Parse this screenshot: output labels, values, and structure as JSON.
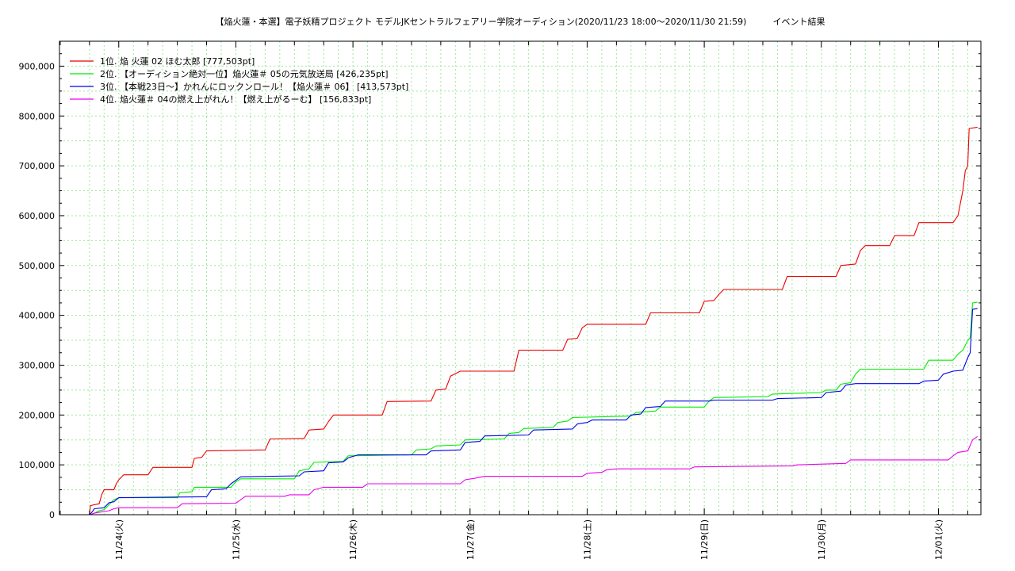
{
  "chart_data": {
    "type": "line",
    "title": "【焔火蓮・本選】電子妖精プロジェクト モデルJKセントラルフェアリー学院オーディション(2020/11/23 18:00〜2020/11/30 21:59)　　　イベント結果",
    "xlabel": "",
    "ylabel": "",
    "ylim": [
      0,
      950000
    ],
    "grid": true,
    "legend_position": "top-left",
    "x_tick_labels": [
      "11/24(火)",
      "11/25(水)",
      "11/26(木)",
      "11/27(金)",
      "11/28(土)",
      "11/29(日)",
      "11/30(月)",
      "12/01(火)"
    ],
    "y_tick_labels": [
      "0",
      "100,000",
      "200,000",
      "300,000",
      "400,000",
      "500,000",
      "600,000",
      "700,000",
      "800,000",
      "900,000"
    ],
    "x_unit": "hours since 2020/11/23 18:00",
    "series": [
      {
        "name": "1位. 焔 火蓮 02 ほむ太郎 [777,503pt]",
        "color": "#ee0000",
        "points": [
          [
            0,
            0
          ],
          [
            0.2,
            18000
          ],
          [
            1,
            20000
          ],
          [
            2,
            22000
          ],
          [
            2.5,
            40000
          ],
          [
            3,
            50000
          ],
          [
            5,
            50000
          ],
          [
            5.5,
            62000
          ],
          [
            6,
            70000
          ],
          [
            7,
            80000
          ],
          [
            12,
            80000
          ],
          [
            13,
            95000
          ],
          [
            21,
            95000
          ],
          [
            21.5,
            113000
          ],
          [
            23,
            115000
          ],
          [
            24,
            128000
          ],
          [
            36,
            130000
          ],
          [
            37,
            152000
          ],
          [
            44,
            153000
          ],
          [
            45,
            170000
          ],
          [
            48,
            172000
          ],
          [
            49,
            187000
          ],
          [
            50,
            200000
          ],
          [
            60,
            200000
          ],
          [
            61,
            227000
          ],
          [
            70,
            228000
          ],
          [
            71,
            250000
          ],
          [
            73,
            252000
          ],
          [
            74,
            278000
          ],
          [
            76,
            288000
          ],
          [
            87,
            288000
          ],
          [
            88,
            330000
          ],
          [
            97,
            330000
          ],
          [
            98,
            352000
          ],
          [
            100,
            354000
          ],
          [
            101,
            375000
          ],
          [
            102,
            382000
          ],
          [
            114,
            382000
          ],
          [
            115,
            405000
          ],
          [
            125,
            405000
          ],
          [
            126,
            428000
          ],
          [
            128,
            430000
          ],
          [
            129,
            442000
          ],
          [
            130,
            452000
          ],
          [
            142,
            452000
          ],
          [
            143,
            478000
          ],
          [
            153,
            478000
          ],
          [
            154,
            500000
          ],
          [
            157,
            503000
          ],
          [
            158,
            530000
          ],
          [
            159,
            540000
          ],
          [
            164,
            540000
          ],
          [
            165,
            560000
          ],
          [
            169,
            560000
          ],
          [
            170,
            586000
          ],
          [
            177,
            586000
          ],
          [
            178,
            600000
          ],
          [
            179,
            650000
          ],
          [
            179.5,
            690000
          ],
          [
            180,
            700000
          ],
          [
            180.3,
            775000
          ],
          [
            182,
            777503
          ]
        ]
      },
      {
        "name": "2位. 【オーディション絶対一位】焔火蓮＃ 05の元気放送局 [426,235pt]",
        "color": "#00ee00",
        "points": [
          [
            0,
            0
          ],
          [
            1,
            3000
          ],
          [
            2,
            8000
          ],
          [
            3,
            10000
          ],
          [
            4,
            20000
          ],
          [
            5,
            30000
          ],
          [
            6,
            34000
          ],
          [
            18,
            34000
          ],
          [
            18.5,
            44000
          ],
          [
            21,
            46000
          ],
          [
            21.5,
            55000
          ],
          [
            29,
            55000
          ],
          [
            30,
            66000
          ],
          [
            31,
            72000
          ],
          [
            42,
            72000
          ],
          [
            43,
            88000
          ],
          [
            45,
            92000
          ],
          [
            46,
            105000
          ],
          [
            52,
            107000
          ],
          [
            53,
            118000
          ],
          [
            66,
            120000
          ],
          [
            67,
            130000
          ],
          [
            70,
            132000
          ],
          [
            71,
            138000
          ],
          [
            76,
            140000
          ],
          [
            77,
            150000
          ],
          [
            85,
            152000
          ],
          [
            86,
            163000
          ],
          [
            88,
            165000
          ],
          [
            89,
            173000
          ],
          [
            95,
            175000
          ],
          [
            96,
            185000
          ],
          [
            98,
            188000
          ],
          [
            99,
            195000
          ],
          [
            111,
            198000
          ],
          [
            112,
            205000
          ],
          [
            116,
            208000
          ],
          [
            117,
            216000
          ],
          [
            126,
            216000
          ],
          [
            127,
            228000
          ],
          [
            128,
            235000
          ],
          [
            139,
            237000
          ],
          [
            140,
            242000
          ],
          [
            150,
            245000
          ],
          [
            151,
            250000
          ],
          [
            153,
            250000
          ],
          [
            154,
            262000
          ],
          [
            156,
            265000
          ],
          [
            157,
            282000
          ],
          [
            158,
            292000
          ],
          [
            171,
            292000
          ],
          [
            172,
            310000
          ],
          [
            177,
            310000
          ],
          [
            178,
            322000
          ],
          [
            179,
            330000
          ],
          [
            180,
            350000
          ],
          [
            180.5,
            355000
          ],
          [
            181,
            425000
          ],
          [
            182,
            426235
          ]
        ]
      },
      {
        "name": "3位. 【本戦23日〜】かれんにロックンロール！【焔火蓮＃ 06】 [413,573pt]",
        "color": "#0000ee",
        "points": [
          [
            0,
            0
          ],
          [
            0.5,
            5000
          ],
          [
            1,
            12000
          ],
          [
            3,
            14000
          ],
          [
            4,
            24000
          ],
          [
            5,
            26000
          ],
          [
            6,
            34000
          ],
          [
            24,
            36000
          ],
          [
            25,
            50000
          ],
          [
            28,
            52000
          ],
          [
            29,
            62000
          ],
          [
            31,
            76000
          ],
          [
            43,
            78000
          ],
          [
            44,
            86000
          ],
          [
            48,
            88000
          ],
          [
            49,
            104000
          ],
          [
            52,
            106000
          ],
          [
            53,
            114000
          ],
          [
            55,
            120000
          ],
          [
            69,
            120000
          ],
          [
            70,
            128000
          ],
          [
            76,
            130000
          ],
          [
            77,
            145000
          ],
          [
            80,
            147000
          ],
          [
            81,
            158000
          ],
          [
            90,
            160000
          ],
          [
            91,
            170000
          ],
          [
            99,
            172000
          ],
          [
            100,
            182000
          ],
          [
            102,
            185000
          ],
          [
            103,
            190000
          ],
          [
            110,
            190000
          ],
          [
            111,
            200000
          ],
          [
            113,
            202000
          ],
          [
            114,
            215000
          ],
          [
            117,
            217000
          ],
          [
            118,
            228000
          ],
          [
            127,
            228000
          ],
          [
            128,
            230000
          ],
          [
            140,
            230000
          ],
          [
            141,
            233000
          ],
          [
            150,
            235000
          ],
          [
            151,
            245000
          ],
          [
            154,
            248000
          ],
          [
            155,
            260000
          ],
          [
            157,
            263000
          ],
          [
            158,
            263000
          ],
          [
            170,
            263000
          ],
          [
            171,
            268000
          ],
          [
            174,
            270000
          ],
          [
            175,
            282000
          ],
          [
            177,
            288000
          ],
          [
            179,
            290000
          ],
          [
            180,
            315000
          ],
          [
            180.5,
            325000
          ],
          [
            181,
            412000
          ],
          [
            182,
            413573
          ]
        ]
      },
      {
        "name": "4位. 焔火蓮＃ 04の燃え上がれん！【燃え上がるーむ】 [156,833pt]",
        "color": "#ee00ee",
        "points": [
          [
            0,
            0
          ],
          [
            1,
            3000
          ],
          [
            2,
            5000
          ],
          [
            4,
            8000
          ],
          [
            5,
            12000
          ],
          [
            6,
            14000
          ],
          [
            18,
            14000
          ],
          [
            19,
            22000
          ],
          [
            30,
            23000
          ],
          [
            31,
            30000
          ],
          [
            32,
            37000
          ],
          [
            40,
            37000
          ],
          [
            41,
            40000
          ],
          [
            45,
            40000
          ],
          [
            46,
            50000
          ],
          [
            48,
            55000
          ],
          [
            56,
            55000
          ],
          [
            57,
            62000
          ],
          [
            76,
            62000
          ],
          [
            77,
            70000
          ],
          [
            79,
            73000
          ],
          [
            81,
            77000
          ],
          [
            101,
            77000
          ],
          [
            102,
            83000
          ],
          [
            105,
            85000
          ],
          [
            106,
            90000
          ],
          [
            108,
            92000
          ],
          [
            123,
            92000
          ],
          [
            124,
            96000
          ],
          [
            144,
            98000
          ],
          [
            145,
            100000
          ],
          [
            155,
            103000
          ],
          [
            156,
            110000
          ],
          [
            176,
            110000
          ],
          [
            177,
            118000
          ],
          [
            178,
            125000
          ],
          [
            180,
            128000
          ],
          [
            181,
            150000
          ],
          [
            182,
            156833
          ]
        ]
      }
    ]
  }
}
